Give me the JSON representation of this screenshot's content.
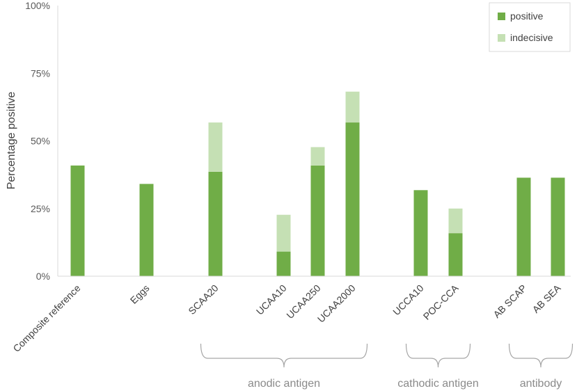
{
  "chart_data": {
    "type": "bar",
    "stacked": true,
    "ylabel": "Percentage positive",
    "yticks": [
      "0%",
      "25%",
      "50%",
      "75%",
      "100%"
    ],
    "ylim": [
      0,
      100
    ],
    "categories": [
      "Composite reference",
      "Eggs",
      "SCAA20",
      "UCAA10",
      "UCAA250",
      "UCAA2000",
      "UCCA10",
      "POC-CCA",
      "AB SCAP",
      "AB SEA"
    ],
    "series": [
      {
        "name": "positive",
        "color": "#70ad47",
        "values": [
          40.9,
          34.1,
          38.6,
          9.1,
          40.9,
          56.8,
          31.8,
          15.9,
          36.4,
          36.4
        ]
      },
      {
        "name": "indecisive",
        "color": "#c5e0b4",
        "values": [
          0,
          0,
          18.2,
          13.6,
          6.8,
          11.4,
          0,
          9.1,
          0,
          0
        ]
      }
    ],
    "groups": [
      {
        "label": "anodic antigen",
        "from": 2,
        "to": 5
      },
      {
        "label": "cathodic antigen",
        "from": 6,
        "to": 7
      },
      {
        "label": "antibody",
        "from": 8,
        "to": 9
      }
    ],
    "legend_position": "top-right",
    "grid": false
  }
}
